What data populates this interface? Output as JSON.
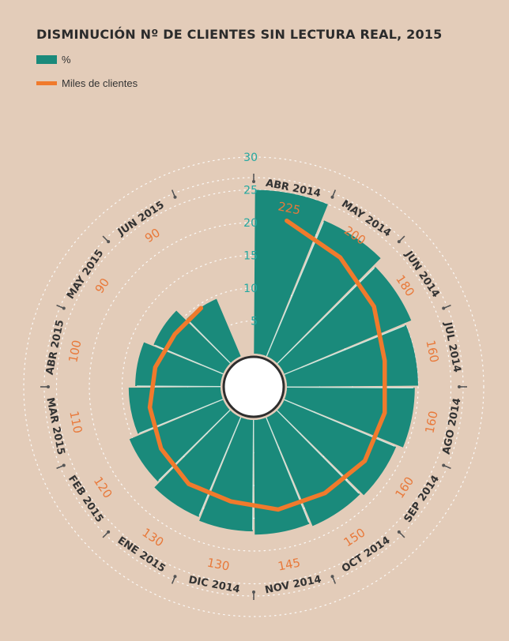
{
  "title": "DISMINUCIÓN Nº DE CLIENTES SIN LECTURA REAL, 2015",
  "legend": [
    {
      "label": "%",
      "color": "#1a8a7b",
      "kind": "bar"
    },
    {
      "label": "Miles de clientes",
      "color": "#f07a2c",
      "kind": "line"
    }
  ],
  "chart_data": {
    "type": "radial-bar-line",
    "categories": [
      "ABR 2014",
      "MAY 2014",
      "JUN 2014",
      "JUL 2014",
      "AGO 2014",
      "SEP 2014",
      "OCT 2014",
      "NOV 2014",
      "DIC 2014",
      "ENE 2015",
      "FEB 2015",
      "MAR 2015",
      "ABR 2015",
      "MAY 2015",
      "JUN 2015"
    ],
    "series": [
      {
        "name": "%",
        "type": "bar",
        "color": "#1a8a7b",
        "values": [
          25,
          22.5,
          21,
          20,
          19.5,
          18.5,
          18,
          17.5,
          17,
          16.5,
          15.5,
          14,
          13,
          11.5,
          9.5
        ]
      },
      {
        "name": "Miles de clientes",
        "type": "line",
        "color": "#f07a2c",
        "values": [
          225,
          200,
          180,
          160,
          160,
          160,
          150,
          145,
          130,
          130,
          120,
          110,
          100,
          90,
          90
        ]
      }
    ],
    "radial_axis": {
      "ticks": [
        5,
        10,
        15,
        20,
        25,
        30
      ],
      "range": [
        0,
        30
      ]
    },
    "value_labels": [
      "225",
      "200",
      "180",
      "160",
      "160",
      "160",
      "150",
      "145",
      "130",
      "130",
      "120",
      "110",
      "100",
      "90",
      "90"
    ]
  }
}
